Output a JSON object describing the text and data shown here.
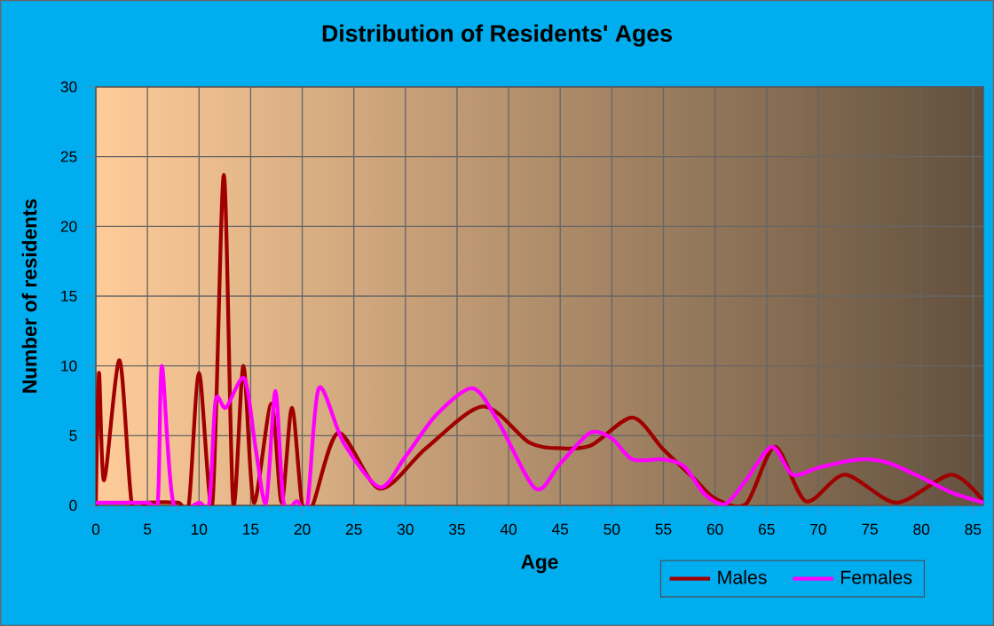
{
  "chart_data": {
    "type": "line",
    "title": "Distribution of Residents' Ages",
    "xlabel": "Age",
    "ylabel": "Number of residents",
    "xlim": [
      0,
      86
    ],
    "ylim": [
      0,
      30
    ],
    "xticks": [
      0,
      5,
      10,
      15,
      20,
      25,
      30,
      35,
      40,
      45,
      50,
      55,
      60,
      65,
      70,
      75,
      80,
      85
    ],
    "yticks": [
      0,
      5,
      10,
      15,
      20,
      25,
      30
    ],
    "grid": true,
    "legend": "bottom right",
    "marker": "none",
    "line_style": "solid",
    "series": [
      {
        "name": "Males",
        "color": "#a00000",
        "x": [
          0,
          0.3,
          0.8,
          2.3,
          3.5,
          5,
          8,
          9,
          10,
          11.3,
          12.4,
          13.3,
          14.3,
          15.3,
          17,
          18,
          19,
          20,
          21,
          23.5,
          27.5,
          32,
          37.5,
          42,
          45,
          48,
          52,
          55,
          58,
          60,
          63,
          65.8,
          68.8,
          72.6,
          77.6,
          82.9,
          86
        ],
        "values": [
          0,
          9.5,
          1.8,
          10.4,
          0,
          0.2,
          0.2,
          0,
          9.5,
          0.2,
          23.7,
          0.2,
          10,
          0.2,
          7.3,
          0.2,
          7,
          0,
          0,
          5.2,
          1.2,
          4.1,
          7.1,
          4.5,
          4.1,
          4.3,
          6.3,
          4,
          1.9,
          0.5,
          0.1,
          4.2,
          0.3,
          2.2,
          0.2,
          2.2,
          0.3
        ]
      },
      {
        "name": "Females",
        "color": "#ff00ff",
        "x": [
          0,
          5,
          6,
          6.4,
          7.5,
          10,
          11,
          11.6,
          12.6,
          14.4,
          15.5,
          16.5,
          17.4,
          18.2,
          19.5,
          20.5,
          21.6,
          24,
          27.5,
          30,
          33,
          36.5,
          39,
          42.6,
          45,
          47.9,
          50,
          52,
          55,
          57,
          59,
          61,
          63,
          65.5,
          67.5,
          70,
          73,
          75,
          77,
          80,
          83,
          86
        ],
        "values": [
          0.2,
          0.2,
          0.2,
          10,
          0.2,
          0.2,
          0.2,
          7.5,
          7,
          9.1,
          4,
          0.2,
          8.2,
          0.2,
          0.3,
          0,
          8.4,
          4.5,
          1.3,
          3.5,
          6.5,
          8.4,
          6,
          1.2,
          3,
          5.2,
          4.8,
          3.3,
          3.3,
          2.8,
          0.8,
          0.1,
          1.8,
          4.2,
          2.2,
          2.7,
          3.2,
          3.3,
          3,
          2,
          0.9,
          0.2
        ]
      }
    ]
  }
}
